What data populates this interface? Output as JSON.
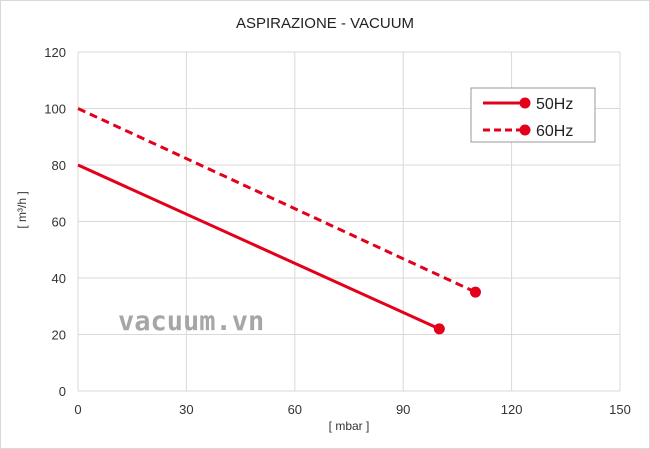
{
  "watermark": "vacuum.vn",
  "chart_data": {
    "type": "line",
    "title": "ASPIRAZIONE - VACUUM",
    "xlabel": "[ mbar ]",
    "ylabel": "[ m³/h ]",
    "xlim": [
      0,
      150
    ],
    "ylim": [
      0,
      120
    ],
    "xticks": [
      0,
      30,
      60,
      90,
      120,
      150
    ],
    "yticks": [
      0,
      20,
      40,
      60,
      80,
      100,
      120
    ],
    "grid": true,
    "legend_position": "top-right",
    "series": [
      {
        "name": "50Hz",
        "color": "#e3001b",
        "style": "solid",
        "x": [
          0,
          100
        ],
        "y": [
          80,
          22
        ],
        "end_marker": true
      },
      {
        "name": "60Hz",
        "color": "#e3001b",
        "style": "dashed",
        "x": [
          0,
          110
        ],
        "y": [
          100,
          35
        ],
        "end_marker": true
      }
    ]
  }
}
